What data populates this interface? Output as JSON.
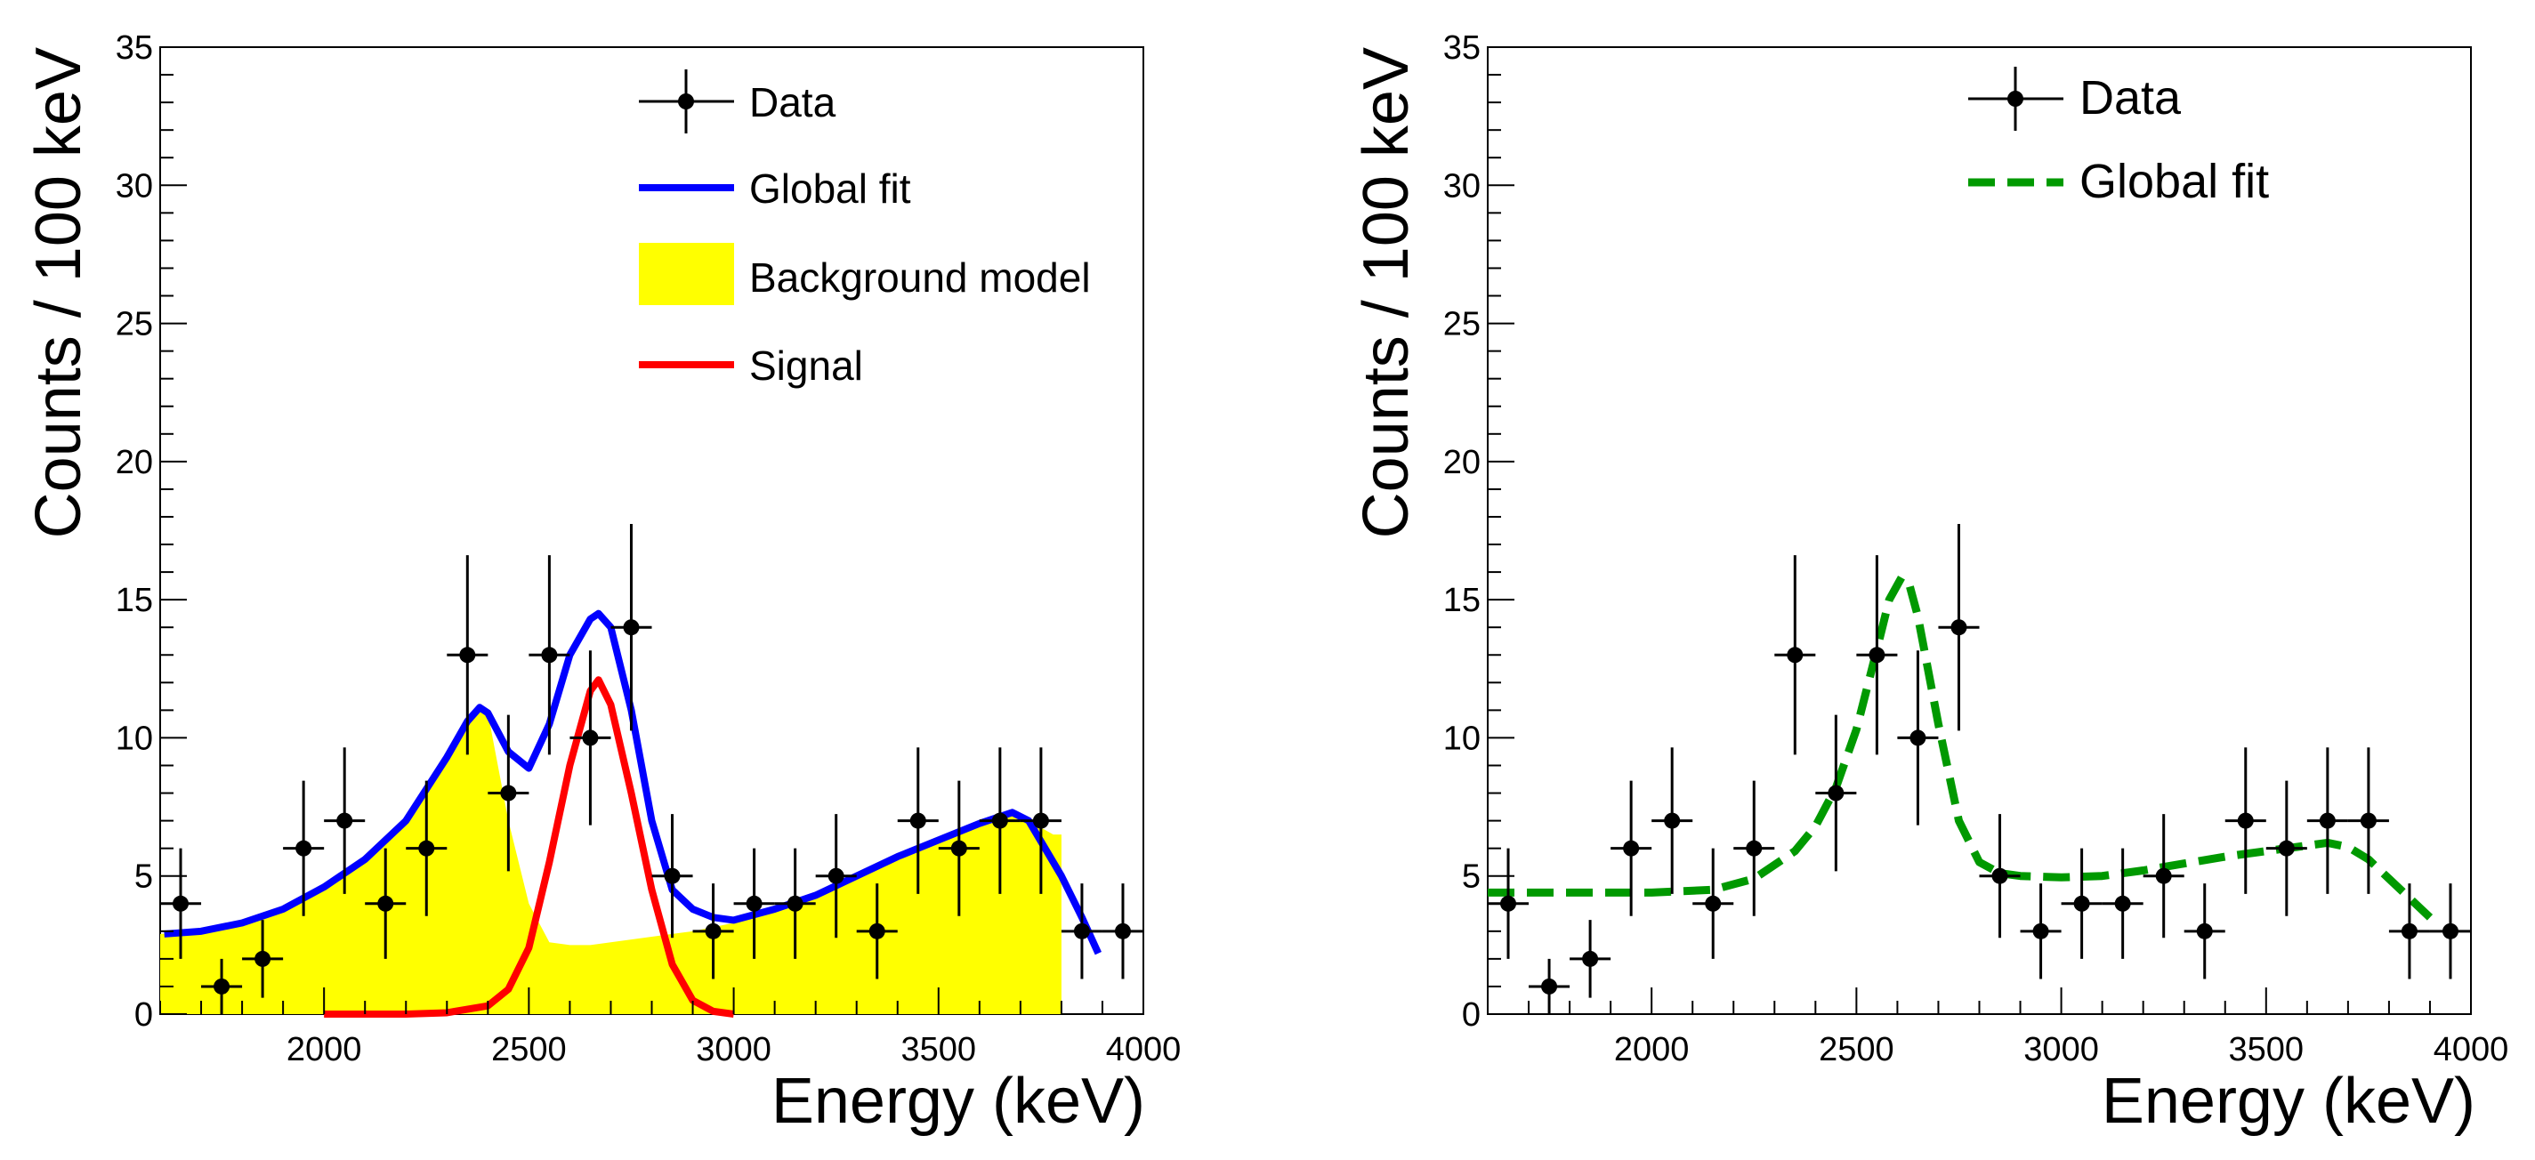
{
  "colors": {
    "data": "#000000",
    "global_fit_left": "#0000ff",
    "background_model": "#ffff00",
    "signal": "#ff0000",
    "global_fit_right": "#009900"
  },
  "chart_data": [
    {
      "type": "scatter",
      "title": "",
      "xlabel": "Energy (keV)",
      "ylabel": "Counts / 100 keV",
      "xlim": [
        1600,
        4000
      ],
      "ylim": [
        0,
        35
      ],
      "x_ticks": [
        2000,
        2500,
        3000,
        3500,
        4000
      ],
      "y_ticks": [
        0,
        5,
        10,
        15,
        20,
        25,
        30,
        35
      ],
      "legend": {
        "placement": "top-right",
        "entries": [
          {
            "label": "Data",
            "style": "marker"
          },
          {
            "label": "Global fit",
            "style": "line",
            "color": "#0000ff"
          },
          {
            "label": "Background model",
            "style": "fill",
            "color": "#ffff00"
          },
          {
            "label": "Signal",
            "style": "line",
            "color": "#ff0000"
          }
        ]
      },
      "data_points": {
        "name": "Data",
        "x": [
          1650,
          1750,
          1850,
          1950,
          2050,
          2150,
          2250,
          2350,
          2450,
          2550,
          2650,
          2750,
          2850,
          2950,
          3050,
          3150,
          3250,
          3350,
          3450,
          3550,
          3650,
          3750,
          3850,
          3950
        ],
        "y": [
          4,
          1,
          2,
          6,
          7,
          4,
          6,
          13,
          8,
          13,
          10,
          14,
          5,
          3,
          4,
          4,
          5,
          3,
          7,
          6,
          7,
          7,
          3,
          3
        ],
        "yerr": [
          2.0,
          1.0,
          1.41,
          2.45,
          2.65,
          2.0,
          2.45,
          3.61,
          2.83,
          3.61,
          3.16,
          3.74,
          2.24,
          1.73,
          2.0,
          2.0,
          2.24,
          1.73,
          2.65,
          2.45,
          2.65,
          2.65,
          1.73,
          1.73
        ],
        "xerr": 50
      },
      "global_fit": {
        "name": "Global fit",
        "x": [
          1610,
          1700,
          1800,
          1900,
          2000,
          2100,
          2200,
          2300,
          2350,
          2380,
          2400,
          2450,
          2500,
          2550,
          2600,
          2650,
          2670,
          2700,
          2750,
          2800,
          2850,
          2900,
          2950,
          3000,
          3100,
          3200,
          3300,
          3400,
          3500,
          3600,
          3680,
          3720,
          3800,
          3850,
          3890
        ],
        "y": [
          2.9,
          3.0,
          3.3,
          3.8,
          4.6,
          5.6,
          7.0,
          9.3,
          10.6,
          11.1,
          10.9,
          9.5,
          8.9,
          10.5,
          13.0,
          14.3,
          14.5,
          14.0,
          11.0,
          7.0,
          4.5,
          3.8,
          3.5,
          3.4,
          3.8,
          4.3,
          5.0,
          5.7,
          6.3,
          6.9,
          7.3,
          7.0,
          5.0,
          3.5,
          2.2
        ]
      },
      "background_model": {
        "name": "Background model",
        "x": [
          1600,
          1700,
          1800,
          1900,
          2000,
          2100,
          2200,
          2300,
          2350,
          2380,
          2400,
          2450,
          2500,
          2550,
          2600,
          2650,
          2700,
          2800,
          2900,
          3000,
          3100,
          3200,
          3300,
          3400,
          3500,
          3600,
          3680,
          3720,
          3780,
          3800
        ],
        "y": [
          2.9,
          3.0,
          3.3,
          3.8,
          4.6,
          5.6,
          7.0,
          9.3,
          10.6,
          11.1,
          10.9,
          7.0,
          4.0,
          2.6,
          2.5,
          2.5,
          2.6,
          2.8,
          3.0,
          3.3,
          3.8,
          4.3,
          5.0,
          5.7,
          6.3,
          6.9,
          7.3,
          7.0,
          6.5,
          6.5
        ]
      },
      "signal": {
        "name": "Signal",
        "x": [
          2000,
          2200,
          2300,
          2400,
          2450,
          2500,
          2550,
          2600,
          2650,
          2670,
          2700,
          2750,
          2800,
          2850,
          2900,
          2950,
          3000
        ],
        "y": [
          0,
          0,
          0.05,
          0.3,
          0.9,
          2.4,
          5.5,
          9.0,
          11.7,
          12.1,
          11.2,
          8.0,
          4.5,
          1.8,
          0.5,
          0.1,
          0
        ]
      }
    },
    {
      "type": "scatter",
      "title": "",
      "xlabel": "Energy (keV)",
      "ylabel": "Counts / 100 keV",
      "xlim": [
        1600,
        4000
      ],
      "ylim": [
        0,
        35
      ],
      "x_ticks": [
        2000,
        2500,
        3000,
        3500,
        4000
      ],
      "y_ticks": [
        0,
        5,
        10,
        15,
        20,
        25,
        30,
        35
      ],
      "legend": {
        "placement": "top-right",
        "entries": [
          {
            "label": "Data",
            "style": "marker"
          },
          {
            "label": "Global fit",
            "style": "dashed-line",
            "color": "#009900"
          }
        ]
      },
      "data_points": {
        "name": "Data",
        "x": [
          1650,
          1750,
          1850,
          1950,
          2050,
          2150,
          2250,
          2350,
          2450,
          2550,
          2650,
          2750,
          2850,
          2950,
          3050,
          3150,
          3250,
          3350,
          3450,
          3550,
          3650,
          3750,
          3850,
          3950
        ],
        "y": [
          4,
          1,
          2,
          6,
          7,
          4,
          6,
          13,
          8,
          13,
          10,
          14,
          5,
          3,
          4,
          4,
          5,
          3,
          7,
          6,
          7,
          7,
          3,
          3
        ],
        "yerr": [
          2.0,
          1.0,
          1.41,
          2.45,
          2.65,
          2.0,
          2.45,
          3.61,
          2.83,
          3.61,
          3.16,
          3.74,
          2.24,
          1.73,
          2.0,
          2.0,
          2.24,
          1.73,
          2.65,
          2.45,
          2.65,
          2.65,
          1.73,
          1.73
        ],
        "xerr": 50
      },
      "global_fit": {
        "name": "Global fit",
        "x": [
          1600,
          1800,
          2000,
          2150,
          2250,
          2350,
          2400,
          2450,
          2500,
          2550,
          2580,
          2610,
          2630,
          2650,
          2700,
          2750,
          2800,
          2850,
          2900,
          3000,
          3100,
          3200,
          3300,
          3400,
          3500,
          3600,
          3650,
          3700,
          3750,
          3800,
          3850,
          3900
        ],
        "y": [
          4.4,
          4.4,
          4.4,
          4.5,
          4.9,
          5.9,
          6.8,
          8.2,
          10.3,
          13.2,
          15.0,
          15.8,
          15.5,
          14.4,
          10.5,
          7.0,
          5.5,
          5.1,
          5.0,
          4.95,
          5.0,
          5.2,
          5.45,
          5.7,
          5.9,
          6.1,
          6.2,
          6.05,
          5.6,
          4.9,
          4.2,
          3.5
        ]
      }
    }
  ]
}
